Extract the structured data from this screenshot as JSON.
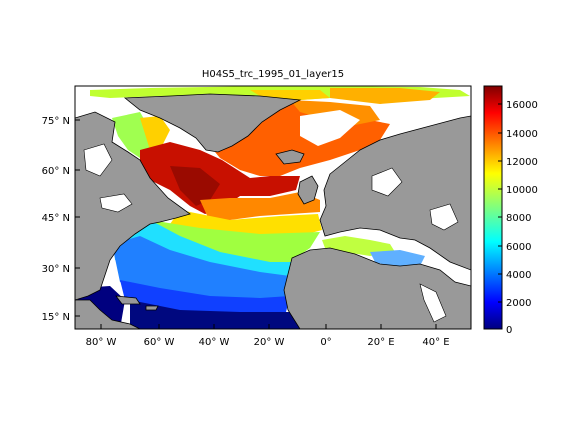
{
  "title": "H04S5_trc_1995_01_layer15",
  "lon_ticks": [
    "80° W",
    "60° W",
    "40° W",
    "20° W",
    "0°",
    "20° E",
    "40° E"
  ],
  "lat_ticks": [
    "75° N",
    "60° N",
    "45° N",
    "30° N",
    "15° N"
  ],
  "colorbar_ticks": [
    "16000",
    "14000",
    "12000",
    "10000",
    "8000",
    "6000",
    "4000",
    "2000",
    "0"
  ],
  "colorbar_range": [
    0,
    17000
  ],
  "colormap": "jet",
  "colors": {
    "land": "#999999",
    "no_data": "#ffffff",
    "coast": "#000000"
  }
}
